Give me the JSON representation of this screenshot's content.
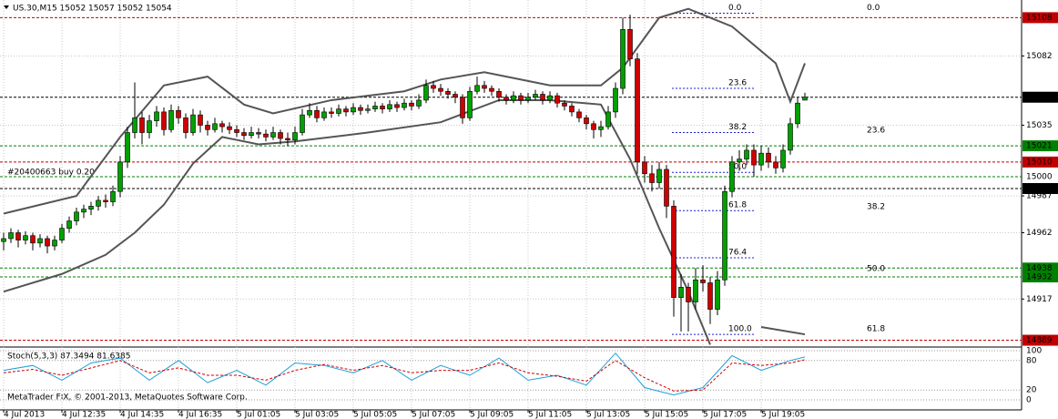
{
  "chart_data": {
    "type": "candlestick",
    "title": "US.30,M15  15052 15057 15052 15054",
    "ylim": [
      14885,
      15120
    ],
    "yticks": [
      15082,
      15035,
      14987,
      14962,
      14917
    ],
    "grid": true,
    "xticks": [
      {
        "value": 0,
        "label": "4 Jul 2013"
      },
      {
        "value": 8,
        "label": "4 Jul 12:35"
      },
      {
        "value": 16,
        "label": "4 Jul 14:35"
      },
      {
        "value": 24,
        "label": "4 Jul 16:35"
      },
      {
        "value": 32,
        "label": "5 Jul 01:05"
      },
      {
        "value": 40,
        "label": "5 Jul 03:05"
      },
      {
        "value": 48,
        "label": "5 Jul 05:05"
      },
      {
        "value": 56,
        "label": "5 Jul 07:05"
      },
      {
        "value": 64,
        "label": "5 Jul 09:05"
      },
      {
        "value": 72,
        "label": "5 Jul 11:05"
      },
      {
        "value": 80,
        "label": "5 Jul 13:05"
      },
      {
        "value": 88,
        "label": "5 Jul 15:05"
      },
      {
        "value": 96,
        "label": "5 Jul 17:05"
      },
      {
        "value": 104,
        "label": "5 Jul 19:05"
      }
    ],
    "up_color": "#00a000",
    "down_color": "#d00000",
    "candles": [
      [
        14956,
        14962,
        14950,
        14958
      ],
      [
        14958,
        14965,
        14955,
        14962
      ],
      [
        14962,
        14964,
        14952,
        14957
      ],
      [
        14957,
        14963,
        14954,
        14960
      ],
      [
        14960,
        14962,
        14950,
        14955
      ],
      [
        14955,
        14961,
        14952,
        14958
      ],
      [
        14958,
        14960,
        14948,
        14953
      ],
      [
        14953,
        14960,
        14950,
        14957
      ],
      [
        14957,
        14968,
        14955,
        14965
      ],
      [
        14965,
        14973,
        14962,
        14970
      ],
      [
        14970,
        14979,
        14967,
        14976
      ],
      [
        14976,
        14981,
        14972,
        14978
      ],
      [
        14978,
        14983,
        14974,
        14980
      ],
      [
        14980,
        14987,
        14977,
        14984
      ],
      [
        14984,
        14988,
        14979,
        14983
      ],
      [
        14983,
        14994,
        14980,
        14990
      ],
      [
        14990,
        15014,
        14986,
        15010
      ],
      [
        15010,
        15034,
        15006,
        15030
      ],
      [
        15030,
        15064,
        15026,
        15040
      ],
      [
        15040,
        15044,
        15022,
        15030
      ],
      [
        15030,
        15042,
        15026,
        15038
      ],
      [
        15038,
        15048,
        15034,
        15044
      ],
      [
        15044,
        15047,
        15028,
        15032
      ],
      [
        15032,
        15049,
        15030,
        15045
      ],
      [
        15045,
        15048,
        15036,
        15040
      ],
      [
        15040,
        15043,
        15026,
        15030
      ],
      [
        15030,
        15046,
        15028,
        15042
      ],
      [
        15042,
        15045,
        15030,
        15035
      ],
      [
        15035,
        15038,
        15028,
        15032
      ],
      [
        15032,
        15040,
        15030,
        15036
      ],
      [
        15036,
        15038,
        15030,
        15034
      ],
      [
        15034,
        15037,
        15029,
        15032
      ],
      [
        15032,
        15035,
        15027,
        15030
      ],
      [
        15030,
        15033,
        15025,
        15028
      ],
      [
        15028,
        15034,
        15026,
        15030
      ],
      [
        15030,
        15033,
        15026,
        15029
      ],
      [
        15029,
        15032,
        15024,
        15027
      ],
      [
        15027,
        15034,
        15025,
        15030
      ],
      [
        15030,
        15032,
        15022,
        15026
      ],
      [
        15026,
        15030,
        15021,
        15025
      ],
      [
        15025,
        15034,
        15022,
        15030
      ],
      [
        15030,
        15046,
        15028,
        15042
      ],
      [
        15042,
        15050,
        15040,
        15045
      ],
      [
        15045,
        15048,
        15037,
        15040
      ],
      [
        15040,
        15047,
        15038,
        15044
      ],
      [
        15044,
        15047,
        15040,
        15043
      ],
      [
        15043,
        15049,
        15041,
        15046
      ],
      [
        15046,
        15048,
        15041,
        15044
      ],
      [
        15044,
        15050,
        15042,
        15047
      ],
      [
        15047,
        15049,
        15042,
        15045
      ],
      [
        15045,
        15049,
        15043,
        15046
      ],
      [
        15046,
        15051,
        15044,
        15048
      ],
      [
        15048,
        15050,
        15043,
        15046
      ],
      [
        15046,
        15052,
        15044,
        15049
      ],
      [
        15049,
        15051,
        15044,
        15047
      ],
      [
        15047,
        15053,
        15045,
        15050
      ],
      [
        15050,
        15052,
        15045,
        15048
      ],
      [
        15048,
        15056,
        15046,
        15052
      ],
      [
        15052,
        15066,
        15050,
        15062
      ],
      [
        15062,
        15065,
        15057,
        15060
      ],
      [
        15060,
        15063,
        15055,
        15058
      ],
      [
        15058,
        15060,
        15053,
        15056
      ],
      [
        15056,
        15058,
        15050,
        15054
      ],
      [
        15054,
        15056,
        15036,
        15040
      ],
      [
        15040,
        15061,
        15038,
        15058
      ],
      [
        15058,
        15068,
        15056,
        15062
      ],
      [
        15062,
        15065,
        15057,
        15060
      ],
      [
        15060,
        15062,
        15055,
        15058
      ],
      [
        15058,
        15060,
        15051,
        15054
      ],
      [
        15054,
        15056,
        15049,
        15052
      ],
      [
        15052,
        15058,
        15050,
        15055
      ],
      [
        15055,
        15057,
        15049,
        15052
      ],
      [
        15052,
        15057,
        15050,
        15054
      ],
      [
        15054,
        15059,
        15052,
        15056
      ],
      [
        15056,
        15058,
        15049,
        15052
      ],
      [
        15052,
        15058,
        15050,
        15055
      ],
      [
        15055,
        15057,
        15047,
        15050
      ],
      [
        15050,
        15052,
        15045,
        15048
      ],
      [
        15048,
        15050,
        15041,
        15044
      ],
      [
        15044,
        15046,
        15037,
        15040
      ],
      [
        15040,
        15042,
        15032,
        15036
      ],
      [
        15036,
        15038,
        15026,
        15032
      ],
      [
        15032,
        15038,
        15027,
        15034
      ],
      [
        15034,
        15048,
        15032,
        15044
      ],
      [
        15044,
        15064,
        15040,
        15060
      ],
      [
        15060,
        15108,
        15056,
        15100
      ],
      [
        15100,
        15110,
        15075,
        15080
      ],
      [
        15080,
        15084,
        15002,
        15010
      ],
      [
        15010,
        15014,
        14996,
        15002
      ],
      [
        15002,
        15008,
        14990,
        14996
      ],
      [
        14996,
        15010,
        14992,
        15005
      ],
      [
        15005,
        15008,
        14972,
        14980
      ],
      [
        14980,
        14984,
        14905,
        14918
      ],
      [
        14918,
        14934,
        14895,
        14925
      ],
      [
        14925,
        14928,
        14895,
        14915
      ],
      [
        14915,
        14938,
        14910,
        14930
      ],
      [
        14930,
        14940,
        14922,
        14928
      ],
      [
        14928,
        14932,
        14900,
        14910
      ],
      [
        14910,
        14936,
        14906,
        14930
      ],
      [
        14930,
        14994,
        14926,
        14990
      ],
      [
        14990,
        15014,
        14986,
        15010
      ],
      [
        15010,
        15018,
        15004,
        15012
      ],
      [
        15012,
        15022,
        15008,
        15018
      ],
      [
        15018,
        15022,
        15000,
        15008
      ],
      [
        15008,
        15021,
        15004,
        15016
      ],
      [
        15016,
        15020,
        15006,
        15010
      ],
      [
        15010,
        15014,
        15002,
        15006
      ],
      [
        15006,
        15022,
        15003,
        15018
      ],
      [
        15018,
        15040,
        15015,
        15036
      ],
      [
        15036,
        15054,
        15033,
        15050
      ],
      [
        15052,
        15057,
        15052,
        15054
      ]
    ],
    "bands": [
      {
        "color": "#555555",
        "x": [
          0,
          10,
          16,
          22,
          28,
          33,
          37,
          45,
          55,
          60,
          66,
          75,
          82,
          85,
          90,
          94,
          100,
          106,
          108,
          110
        ],
        "values": [
          14975,
          14987,
          15027,
          15062,
          15068,
          15049,
          15043,
          15052,
          15058,
          15066,
          15071,
          15062,
          15062,
          15074,
          15108,
          15114,
          15102,
          15077,
          15051,
          15077
        ]
      },
      {
        "color": "#555555",
        "x": [
          0,
          8,
          14,
          18,
          22,
          26,
          30,
          35,
          40,
          50,
          60,
          68,
          75,
          82,
          86,
          90,
          94,
          97
        ],
        "values": [
          14922,
          14934,
          14947,
          14962,
          14981,
          15009,
          15027,
          15022,
          15024,
          15030,
          15037,
          15052,
          15052,
          15049,
          15012,
          14965,
          14922,
          14886
        ]
      },
      {
        "color": "#555555",
        "x": [
          104,
          110
        ],
        "values": [
          14898,
          14893
        ]
      }
    ],
    "levels": [
      {
        "price": 15108,
        "color": "#c00000",
        "box": true
      },
      {
        "price": 15054,
        "color": "#000000",
        "box": true
      },
      {
        "price": 15021,
        "color": "#008000",
        "box": true
      },
      {
        "price": 15010,
        "color": "#c00000",
        "box": true
      },
      {
        "price": 15000,
        "color": "#008000",
        "box": false
      },
      {
        "price": 14992,
        "color": "#000000",
        "box": true
      },
      {
        "price": 14938,
        "color": "#008000",
        "box": true
      },
      {
        "price": 14932,
        "color": "#008000",
        "box": true
      },
      {
        "price": 14889,
        "color": "#c00000",
        "box": true
      }
    ],
    "fib_color": "#2020d0",
    "fib_left": [
      {
        "label": "0.0",
        "price": 15111
      },
      {
        "label": "23.6",
        "price": 15060
      },
      {
        "label": "38.2",
        "price": 15030
      },
      {
        "label": "50.0",
        "price": 15003
      },
      {
        "label": "61.8",
        "price": 14977
      },
      {
        "label": "76.4",
        "price": 14945
      },
      {
        "label": "100.0",
        "price": 14893
      }
    ],
    "fib_right": [
      {
        "label": "0.0",
        "price": 15111
      },
      {
        "label": "23.6",
        "price": 15028
      },
      {
        "label": "38.2",
        "price": 14976
      },
      {
        "label": "50.0",
        "price": 14934
      },
      {
        "label": "61.8",
        "price": 14893
      }
    ],
    "trade_label": "#20400663 buy 0.20",
    "copyright": "MetaTrader FIX, © 2001-2013, MetaQuotes Software Corp.",
    "stoch": {
      "label": "Stoch(5,3,3) 87.3494 81.6385",
      "ylim": [
        0,
        100
      ],
      "yticks": [
        100,
        80,
        20,
        0
      ],
      "x": [
        0,
        4,
        8,
        12,
        16,
        20,
        24,
        28,
        32,
        36,
        40,
        44,
        48,
        52,
        56,
        60,
        64,
        68,
        72,
        76,
        80,
        84,
        88,
        92,
        96,
        100,
        104,
        108,
        110
      ],
      "series": [
        {
          "color": "#1e9fd8",
          "dash": false,
          "values": [
            60,
            70,
            40,
            75,
            85,
            40,
            80,
            35,
            60,
            30,
            75,
            70,
            55,
            80,
            40,
            70,
            50,
            85,
            40,
            50,
            30,
            95,
            25,
            10,
            25,
            90,
            60,
            80,
            87.3494
          ]
        },
        {
          "color": "#d00000",
          "dash": true,
          "values": [
            55,
            62,
            50,
            65,
            80,
            55,
            65,
            50,
            50,
            40,
            60,
            72,
            60,
            70,
            55,
            60,
            60,
            75,
            55,
            48,
            38,
            80,
            45,
            18,
            20,
            75,
            70,
            75,
            81.6385
          ]
        }
      ]
    }
  }
}
